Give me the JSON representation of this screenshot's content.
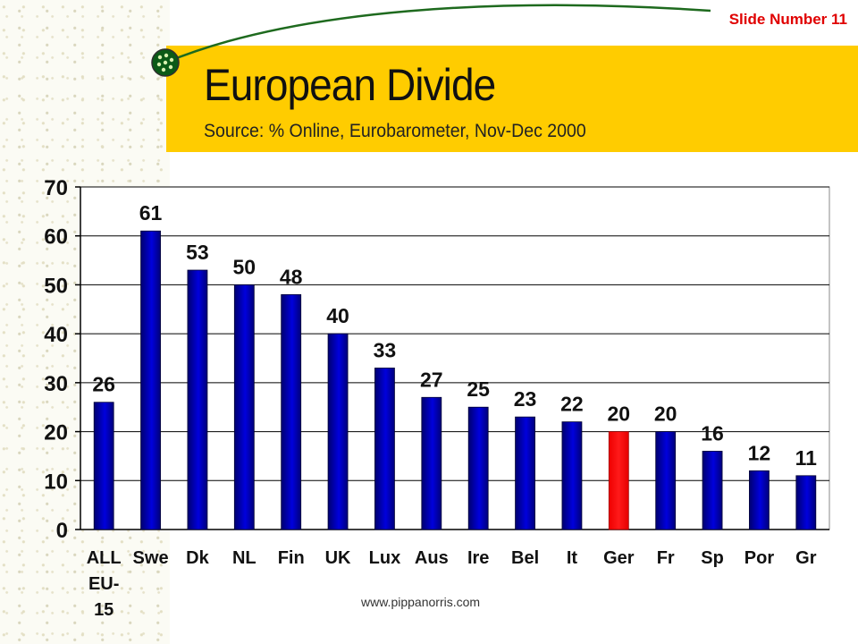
{
  "header": {
    "slide_number": "Slide Number 11",
    "title": "European Divide",
    "subtitle": "Source: % Online, Eurobarometer, Nov-Dec 2000"
  },
  "footer": {
    "url": "www.pippanorris.com"
  },
  "colors": {
    "title_band": "#ffcc00",
    "bar_default": "#0000cc",
    "bar_highlight": "#ff0000",
    "slide_number": "#e00000"
  },
  "chart_data": {
    "type": "bar",
    "title": "",
    "xlabel": "",
    "ylabel": "",
    "categories": [
      "ALL EU-15",
      "Swe",
      "Dk",
      "NL",
      "Fin",
      "UK",
      "Lux",
      "Aus",
      "Ire",
      "Bel",
      "It",
      "Ger",
      "Fr",
      "Sp",
      "Por",
      "Gr"
    ],
    "category_lines": [
      [
        "ALL",
        "EU-",
        "15"
      ],
      [
        "Swe"
      ],
      [
        "Dk"
      ],
      [
        "NL"
      ],
      [
        "Fin"
      ],
      [
        "UK"
      ],
      [
        "Lux"
      ],
      [
        "Aus"
      ],
      [
        "Ire"
      ],
      [
        "Bel"
      ],
      [
        "It"
      ],
      [
        "Ger"
      ],
      [
        "Fr"
      ],
      [
        "Sp"
      ],
      [
        "Por"
      ],
      [
        "Gr"
      ]
    ],
    "values": [
      26,
      61,
      53,
      50,
      48,
      40,
      33,
      27,
      25,
      23,
      22,
      20,
      20,
      16,
      12,
      11
    ],
    "highlight_category": "Ger",
    "ylim": [
      0,
      70
    ],
    "yticks": [
      0,
      10,
      20,
      30,
      40,
      50,
      60,
      70
    ],
    "grid": true,
    "data_labels": true,
    "legend": "none"
  }
}
